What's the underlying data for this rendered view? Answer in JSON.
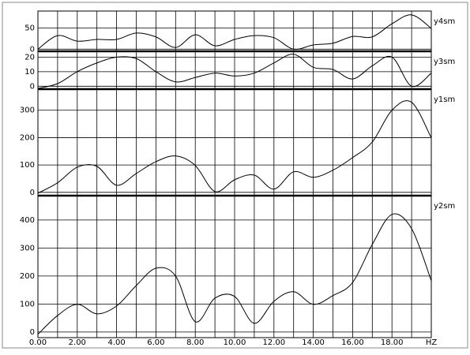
{
  "chart_data": {
    "type": "line",
    "color": "#000000",
    "grid": true,
    "x": [
      0,
      1,
      2,
      3,
      4,
      5,
      6,
      7,
      8,
      9,
      10,
      11,
      12,
      13,
      14,
      15,
      16,
      17,
      18,
      19,
      20
    ],
    "xlim": [
      0,
      20
    ],
    "xticks": [
      {
        "value": 0,
        "label": "0.00"
      },
      {
        "value": 2,
        "label": "2.00"
      },
      {
        "value": 4,
        "label": "4.00"
      },
      {
        "value": 6,
        "label": "6.00"
      },
      {
        "value": 8,
        "label": "8.00"
      },
      {
        "value": 10,
        "label": "10.00"
      },
      {
        "value": 12,
        "label": "12.00"
      },
      {
        "value": 14,
        "label": "14.00"
      },
      {
        "value": 16,
        "label": "16.00"
      },
      {
        "value": 18,
        "label": "18.00"
      },
      {
        "value": 20,
        "label": "HZ"
      }
    ],
    "panels": [
      {
        "name": "y4sm",
        "ylim": [
          -5,
          90
        ],
        "yticks": [
          0,
          50
        ],
        "values": [
          0,
          32,
          19,
          23,
          23,
          38,
          29,
          4,
          34,
          8,
          23,
          32,
          27,
          0,
          10,
          14,
          30,
          29,
          60,
          81,
          49
        ]
      },
      {
        "name": "y3sm",
        "ylim": [
          -2,
          24
        ],
        "yticks": [
          0,
          10,
          20
        ],
        "values": [
          -1.5,
          1.8,
          10,
          16,
          20,
          19,
          10,
          3,
          6,
          9,
          7,
          9,
          16,
          22,
          13,
          11.5,
          5,
          14,
          20,
          0,
          9
        ]
      },
      {
        "name": "y1sm",
        "ylim": [
          -12,
          377
        ],
        "yticks": [
          0,
          100,
          200,
          300
        ],
        "values": [
          -3,
          35,
          92,
          95,
          26,
          69,
          112,
          133,
          98,
          3,
          46,
          63,
          12,
          75,
          55,
          81,
          127,
          184,
          300,
          329,
          199
        ]
      },
      {
        "name": "y2sm",
        "ylim": [
          -20,
          487
        ],
        "yticks": [
          0,
          100,
          200,
          300,
          400
        ],
        "values": [
          -8,
          59,
          99,
          65,
          93,
          166,
          228,
          200,
          37,
          121,
          127,
          31,
          110,
          144,
          99,
          130,
          177,
          313,
          420,
          369,
          183
        ]
      }
    ]
  }
}
